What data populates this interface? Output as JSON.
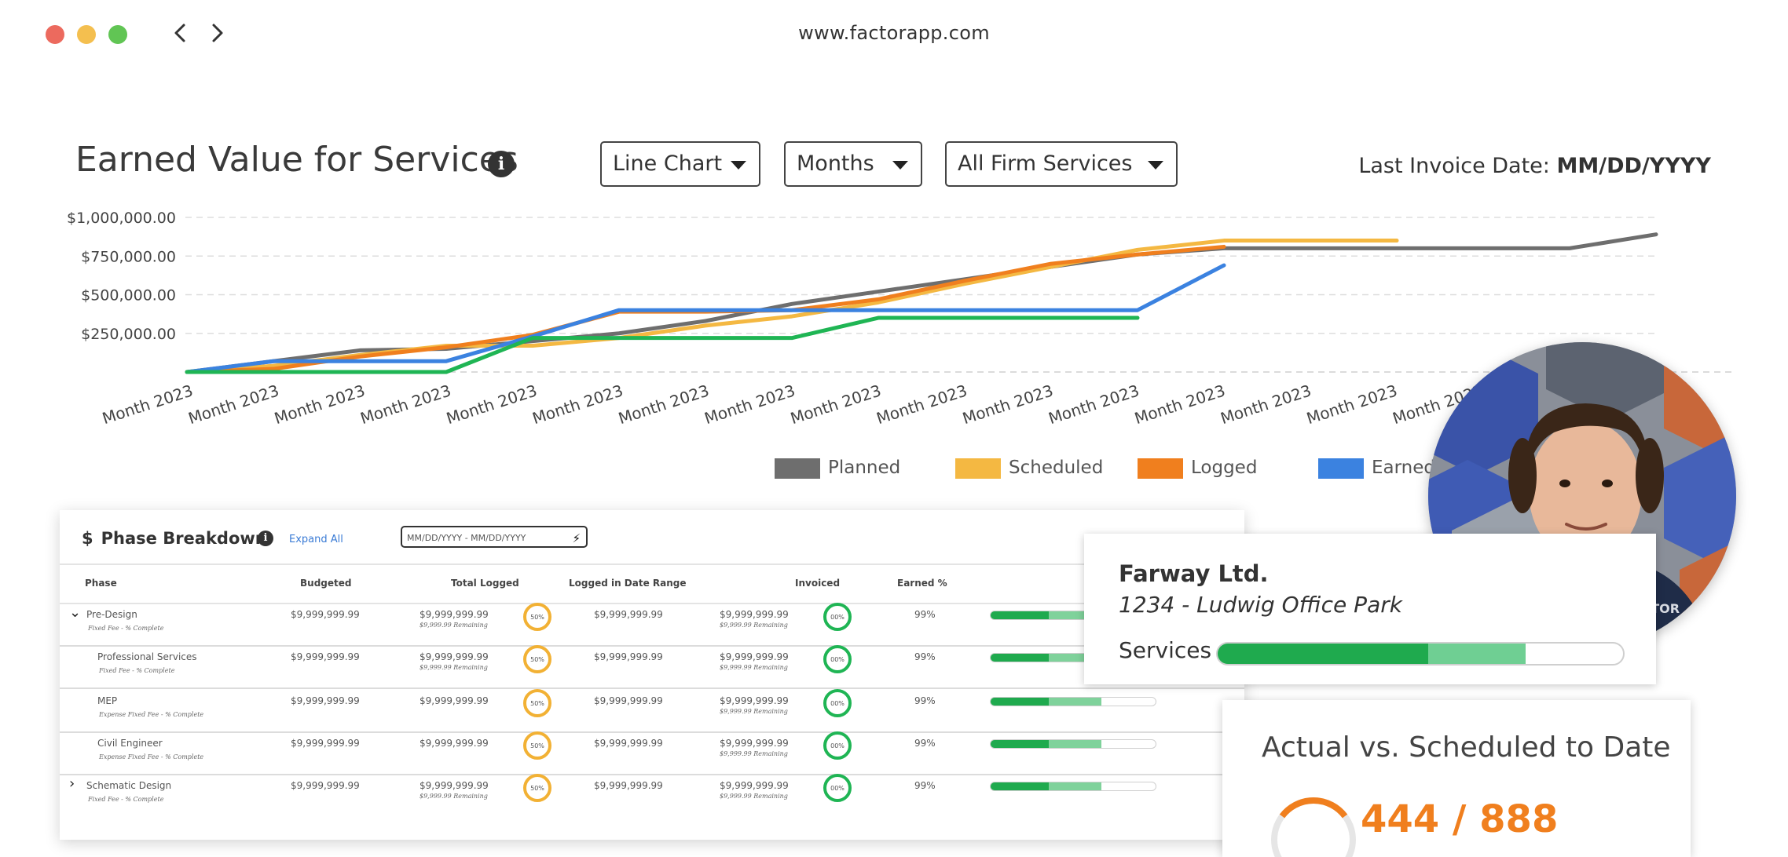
{
  "browser": {
    "url": "www.factorapp.com",
    "traffic_lights": [
      "#ec6a5e",
      "#f4bf4f",
      "#61c554"
    ]
  },
  "header": {
    "title": "Earned Value for Services",
    "chart_type_select": "Line Chart",
    "period_select": "Months",
    "services_select": "All Firm Services",
    "last_invoice_label": "Last Invoice Date:",
    "last_invoice_value": "MM/DD/YYYY"
  },
  "chart_data": {
    "type": "line",
    "title": "Earned Value for Services",
    "categories": [
      "Month 2023",
      "Month 2023",
      "Month 2023",
      "Month 2023",
      "Month 2023",
      "Month 2023",
      "Month 2023",
      "Month 2023",
      "Month 2023",
      "Month 2023",
      "Month 2023",
      "Month 2023",
      "Month 2023",
      "Month 2023",
      "Month 2023",
      "Month 2023",
      "Month 2023",
      "Month 2023"
    ],
    "y_ticks": [
      "$1,000,000.00",
      "$750,000.00",
      "$500,000.00",
      "$250,000.00"
    ],
    "ylim": [
      0,
      1000000
    ],
    "grid": true,
    "legend_position": "bottom",
    "series": [
      {
        "name": "Planned",
        "color": "#6e6e6e",
        "x": [
          0,
          2,
          3,
          4,
          5,
          6,
          7,
          8,
          9,
          10,
          11,
          12,
          13,
          14,
          15,
          16,
          17
        ],
        "values": [
          0,
          140000,
          150000,
          200000,
          250000,
          330000,
          440000,
          520000,
          600000,
          680000,
          760000,
          800000,
          800000,
          800000,
          800000,
          800000,
          890000
        ]
      },
      {
        "name": "Scheduled",
        "color": "#f4b842",
        "x": [
          0,
          1,
          2,
          3,
          4,
          5,
          6,
          7,
          8,
          9,
          10,
          11,
          12,
          13,
          14
        ],
        "values": [
          0,
          40000,
          110000,
          170000,
          170000,
          220000,
          300000,
          360000,
          450000,
          570000,
          680000,
          790000,
          850000,
          850000,
          850000
        ]
      },
      {
        "name": "Logged",
        "color": "#f07f1e",
        "x": [
          0,
          1,
          2,
          3,
          4,
          5,
          6,
          7,
          8,
          9,
          10,
          11,
          12
        ],
        "values": [
          0,
          20000,
          100000,
          160000,
          240000,
          390000,
          390000,
          400000,
          470000,
          590000,
          700000,
          760000,
          810000
        ]
      },
      {
        "name": "Earned",
        "color": "#3b82e0",
        "x": [
          0,
          1,
          2,
          3,
          4,
          5,
          6,
          7,
          8,
          9,
          10,
          11,
          12
        ],
        "values": [
          0,
          70000,
          70000,
          70000,
          230000,
          400000,
          400000,
          400000,
          400000,
          400000,
          400000,
          400000,
          690000
        ]
      },
      {
        "name": "",
        "color": "#1fb554",
        "x": [
          0,
          1,
          2,
          3,
          4,
          5,
          6,
          7,
          8,
          9,
          10,
          11
        ],
        "values": [
          0,
          0,
          0,
          0,
          220000,
          220000,
          220000,
          220000,
          350000,
          350000,
          350000,
          350000
        ]
      }
    ]
  },
  "phase": {
    "title": "Phase Breakdown",
    "currency_icon": "$",
    "expand_all": "Expand All",
    "date_range": "MM/DD/YYYY - MM/DD/YYYY",
    "columns": [
      "Phase",
      "Budgeted",
      "Total Logged",
      "Logged in Date Range",
      "Invoiced",
      "Earned %"
    ],
    "rows": [
      {
        "name": "Pre-Design",
        "sub": "Fixed Fee - % Complete",
        "budgeted": "$9,999,999.99",
        "logged": "$9,999,999.99",
        "logged_sub": "$9,999.99 Remaining",
        "ring1": "50%",
        "range": "$9,999,999.99",
        "invoiced": "$9,999,999.99",
        "invoiced_sub": "$9,999.99 Remaining",
        "ring2": "00%",
        "earned": "99%",
        "progress": 0.35,
        "secondary": 0.67,
        "toggle": "⌄"
      },
      {
        "name": "Professional Services",
        "sub": "Fixed Fee - % Complete",
        "budgeted": "$9,999,999.99",
        "logged": "$9,999,999.99",
        "logged_sub": "$9,999.99 Remaining",
        "ring1": "50%",
        "range": "$9,999,999.99",
        "invoiced": "$9,999,999.99",
        "invoiced_sub": "$9,999.99 Remaining",
        "ring2": "00%",
        "earned": "99%",
        "progress": 0.35,
        "secondary": 0.67,
        "toggle": ""
      },
      {
        "name": "MEP",
        "sub": "Expense Fixed Fee - % Complete",
        "budgeted": "$9,999,999.99",
        "logged": "$9,999,999.99",
        "logged_sub": "",
        "ring1": "50%",
        "range": "$9,999,999.99",
        "invoiced": "$9,999,999.99",
        "invoiced_sub": "$9,999.99 Remaining",
        "ring2": "00%",
        "earned": "99%",
        "progress": 0.35,
        "secondary": 0.67,
        "toggle": ""
      },
      {
        "name": "Civil Engineer",
        "sub": "Expense Fixed Fee - % Complete",
        "budgeted": "$9,999,999.99",
        "logged": "$9,999,999.99",
        "logged_sub": "",
        "ring1": "50%",
        "range": "$9,999,999.99",
        "invoiced": "$9,999,999.99",
        "invoiced_sub": "$9,999.99 Remaining",
        "ring2": "00%",
        "earned": "99%",
        "progress": 0.35,
        "secondary": 0.67,
        "toggle": ""
      },
      {
        "name": "Schematic Design",
        "sub": "Fixed Fee - % Complete",
        "budgeted": "$9,999,999.99",
        "logged": "$9,999,999.99",
        "logged_sub": "$9,999.99 Remaining",
        "ring1": "50%",
        "range": "$9,999,999.99",
        "invoiced": "$9,999,999.99",
        "invoiced_sub": "$9,999.99 Remaining",
        "ring2": "00%",
        "earned": "99%",
        "progress": 0.35,
        "secondary": 0.67,
        "toggle": "›"
      }
    ]
  },
  "client": {
    "name": "Farway Ltd.",
    "project": "1234 - Ludwig Office Park",
    "services_label": "Services",
    "services_progress": 0.52,
    "services_secondary": 0.76
  },
  "actual_vs_scheduled": {
    "title": "Actual vs. Scheduled to Date",
    "value": "444 / 888"
  },
  "avatar": {
    "shirt_text": "FACTOR"
  }
}
